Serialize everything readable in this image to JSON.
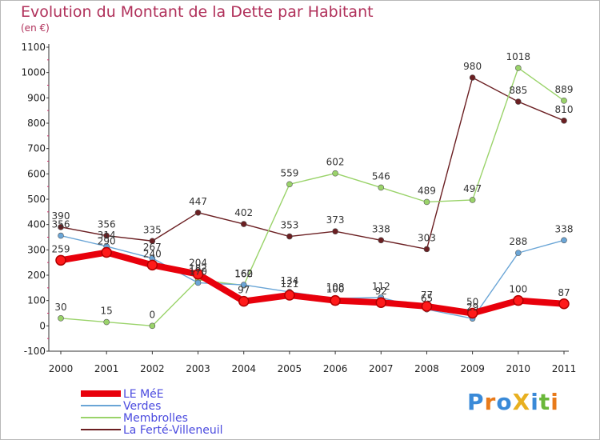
{
  "title": "Evolution du Montant de la Dette par Habitant",
  "unit": "(en €)",
  "logo": "ProXiti",
  "chart_data": {
    "type": "line",
    "title": "Evolution du Montant de la Dette par Habitant",
    "ylabel": "(en €)",
    "xlabel": "",
    "x": [
      2000,
      2001,
      2002,
      2003,
      2004,
      2005,
      2006,
      2007,
      2008,
      2009,
      2010,
      2011
    ],
    "ylim": [
      -100,
      1100
    ],
    "yticks": [
      -100,
      0,
      100,
      200,
      300,
      400,
      500,
      600,
      700,
      800,
      900,
      1000,
      1100
    ],
    "grid": false,
    "legend": "bottom-left",
    "series": [
      {
        "name": "LE MéE",
        "values": [
          259,
          290,
          240,
          204,
          97,
          121,
          100,
          92,
          77,
          50,
          100,
          87
        ],
        "color": "#e8000b",
        "label_color": "#e8000b"
      },
      {
        "name": "Verdes",
        "values": [
          356,
          314,
          267,
          170,
          162,
          134,
          108,
          112,
          65,
          29,
          288,
          338
        ],
        "color": "#6aa5d6",
        "label_color": "#4a74c8"
      },
      {
        "name": "Membrolles",
        "values": [
          30,
          15,
          0,
          182,
          160,
          559,
          602,
          546,
          489,
          497,
          1018,
          889
        ],
        "color": "#9ad36a",
        "label_color": "#6ab83a"
      },
      {
        "name": "La Ferté-Villeneuil",
        "values": [
          390,
          356,
          335,
          447,
          402,
          353,
          373,
          338,
          303,
          980,
          885,
          810
        ],
        "color": "#6b1f22",
        "label_color": "#6b1f22"
      }
    ]
  }
}
